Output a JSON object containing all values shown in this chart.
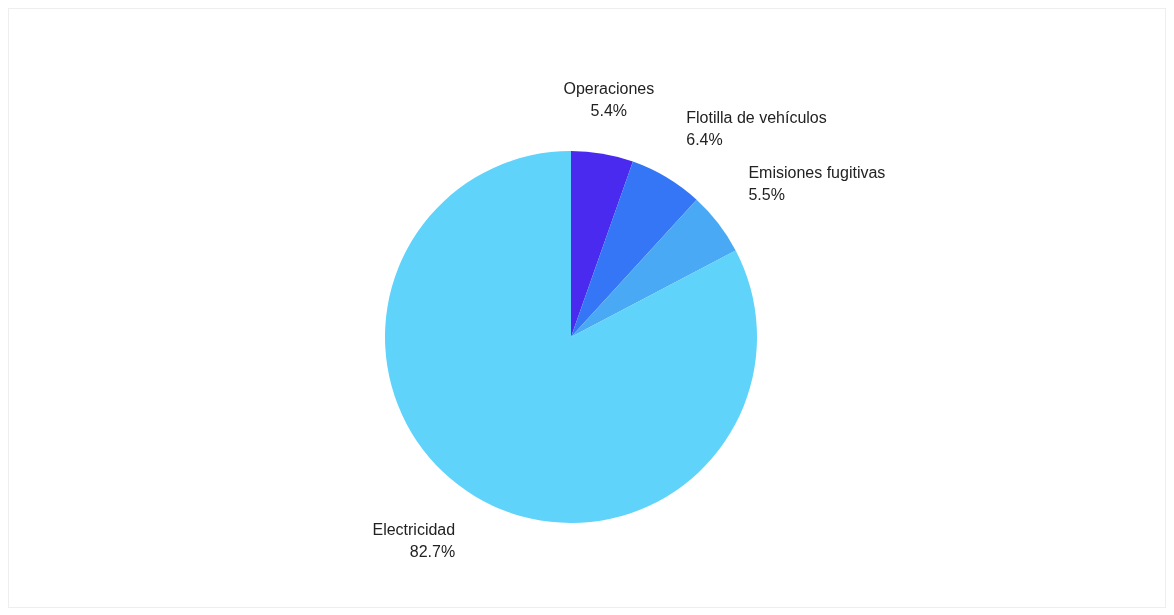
{
  "chart_data": {
    "type": "pie",
    "categories": [
      "Operaciones",
      "Flotilla de vehículos",
      "Emisiones fugitivas",
      "Electricidad"
    ],
    "values": [
      5.4,
      6.4,
      5.5,
      82.7
    ],
    "value_labels": [
      "5.4%",
      "6.4%",
      "5.5%",
      "82.7%"
    ],
    "colors": [
      "#4a2aee",
      "#3476f5",
      "#4aa9f5",
      "#5fd3fa"
    ],
    "legend": false
  }
}
